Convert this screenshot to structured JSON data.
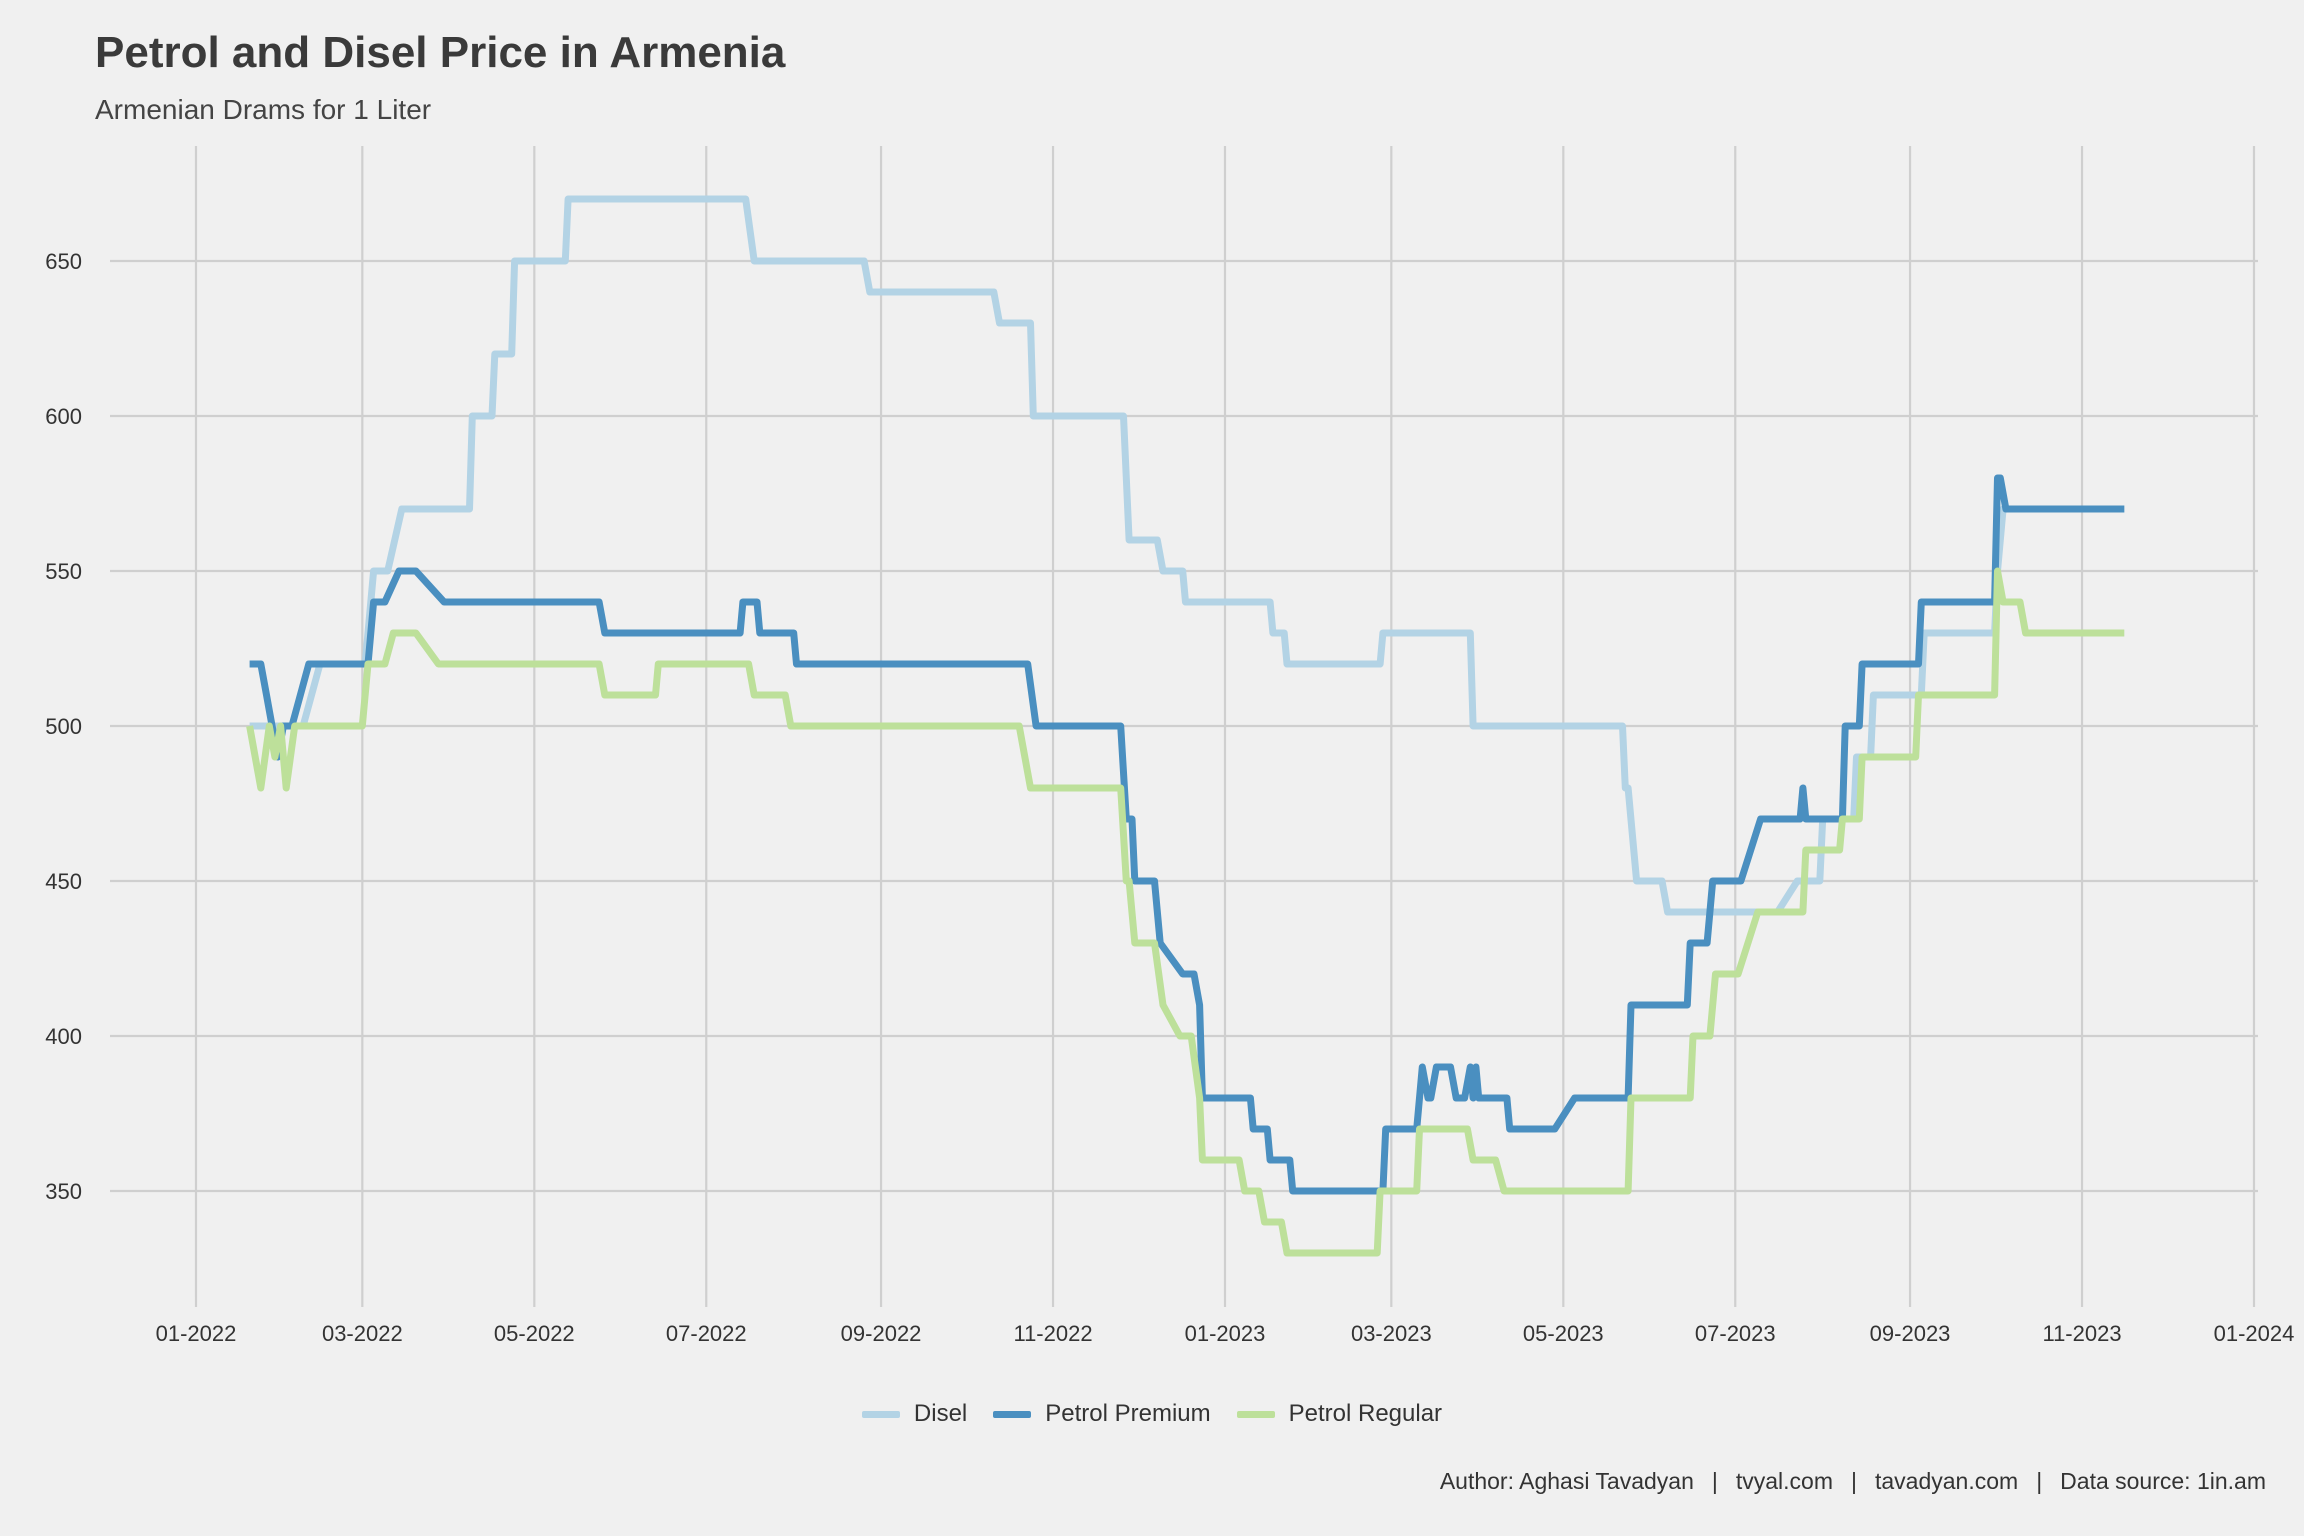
{
  "chart_data": {
    "type": "line",
    "title": "Petrol and Disel Price in Armenia",
    "subtitle": "Armenian Drams for 1 Liter",
    "xlabel": "",
    "ylabel": "",
    "x_ticks": [
      "01-2022",
      "03-2022",
      "05-2022",
      "07-2022",
      "09-2022",
      "11-2022",
      "01-2023",
      "03-2023",
      "05-2023",
      "07-2023",
      "09-2023",
      "11-2023",
      "01-2024"
    ],
    "y_ticks": [
      350,
      400,
      450,
      500,
      550,
      600,
      650
    ],
    "ylim": [
      315,
      685
    ],
    "xlim": [
      "2021-12-14",
      "2024-01-01"
    ],
    "grid": true,
    "legend_position": "bottom",
    "series": [
      {
        "name": "Disel",
        "color": "#b3d3e5",
        "points": [
          [
            "2022-01-20",
            500
          ],
          [
            "2022-02-08",
            500
          ],
          [
            "2022-02-14",
            520
          ],
          [
            "2022-03-02",
            520
          ],
          [
            "2022-03-05",
            550
          ],
          [
            "2022-03-10",
            550
          ],
          [
            "2022-03-15",
            570
          ],
          [
            "2022-04-08",
            570
          ],
          [
            "2022-04-09",
            600
          ],
          [
            "2022-04-16",
            600
          ],
          [
            "2022-04-17",
            620
          ],
          [
            "2022-04-23",
            620
          ],
          [
            "2022-04-24",
            650
          ],
          [
            "2022-05-12",
            650
          ],
          [
            "2022-05-13",
            670
          ],
          [
            "2022-07-15",
            670
          ],
          [
            "2022-07-18",
            650
          ],
          [
            "2022-08-26",
            650
          ],
          [
            "2022-08-28",
            640
          ],
          [
            "2022-10-11",
            640
          ],
          [
            "2022-10-13",
            630
          ],
          [
            "2022-10-24",
            630
          ],
          [
            "2022-10-25",
            600
          ],
          [
            "2022-11-26",
            600
          ],
          [
            "2022-11-28",
            560
          ],
          [
            "2022-12-08",
            560
          ],
          [
            "2022-12-10",
            550
          ],
          [
            "2022-12-17",
            550
          ],
          [
            "2022-12-18",
            540
          ],
          [
            "2023-01-17",
            540
          ],
          [
            "2023-01-18",
            530
          ],
          [
            "2023-01-22",
            530
          ],
          [
            "2023-01-23",
            520
          ],
          [
            "2023-02-25",
            520
          ],
          [
            "2023-02-26",
            530
          ],
          [
            "2023-03-29",
            530
          ],
          [
            "2023-03-30",
            500
          ],
          [
            "2023-05-22",
            500
          ],
          [
            "2023-05-23",
            480
          ],
          [
            "2023-05-24",
            480
          ],
          [
            "2023-05-27",
            450
          ],
          [
            "2023-06-05",
            450
          ],
          [
            "2023-06-07",
            440
          ],
          [
            "2023-07-16",
            440
          ],
          [
            "2023-07-23",
            450
          ],
          [
            "2023-07-31",
            450
          ],
          [
            "2023-08-01",
            470
          ],
          [
            "2023-08-12",
            470
          ],
          [
            "2023-08-13",
            490
          ],
          [
            "2023-08-18",
            490
          ],
          [
            "2023-08-19",
            510
          ],
          [
            "2023-09-05",
            510
          ],
          [
            "2023-09-06",
            530
          ],
          [
            "2023-10-01",
            530
          ],
          [
            "2023-10-02",
            550
          ],
          [
            "2023-10-04",
            570
          ],
          [
            "2023-11-16",
            570
          ]
        ]
      },
      {
        "name": "Petrol Premium",
        "color": "#4a8fc0",
        "points": [
          [
            "2022-01-20",
            520
          ],
          [
            "2022-01-24",
            520
          ],
          [
            "2022-01-26",
            510
          ],
          [
            "2022-01-28",
            500
          ],
          [
            "2022-01-30",
            490
          ],
          [
            "2022-02-01",
            500
          ],
          [
            "2022-02-04",
            500
          ],
          [
            "2022-02-10",
            520
          ],
          [
            "2022-03-03",
            520
          ],
          [
            "2022-03-05",
            540
          ],
          [
            "2022-03-09",
            540
          ],
          [
            "2022-03-14",
            550
          ],
          [
            "2022-03-20",
            550
          ],
          [
            "2022-03-30",
            540
          ],
          [
            "2022-05-24",
            540
          ],
          [
            "2022-05-26",
            530
          ],
          [
            "2022-07-13",
            530
          ],
          [
            "2022-07-14",
            540
          ],
          [
            "2022-07-19",
            540
          ],
          [
            "2022-07-20",
            530
          ],
          [
            "2022-08-01",
            530
          ],
          [
            "2022-08-02",
            520
          ],
          [
            "2022-10-23",
            520
          ],
          [
            "2022-10-26",
            500
          ],
          [
            "2022-11-25",
            500
          ],
          [
            "2022-11-27",
            470
          ],
          [
            "2022-11-29",
            470
          ],
          [
            "2022-11-30",
            450
          ],
          [
            "2022-12-07",
            450
          ],
          [
            "2022-12-09",
            430
          ],
          [
            "2022-12-17",
            420
          ],
          [
            "2022-12-21",
            420
          ],
          [
            "2022-12-23",
            410
          ],
          [
            "2022-12-24",
            380
          ],
          [
            "2023-01-10",
            380
          ],
          [
            "2023-01-11",
            370
          ],
          [
            "2023-01-16",
            370
          ],
          [
            "2023-01-17",
            360
          ],
          [
            "2023-01-24",
            360
          ],
          [
            "2023-01-25",
            350
          ],
          [
            "2023-02-26",
            350
          ],
          [
            "2023-02-27",
            370
          ],
          [
            "2023-03-10",
            370
          ],
          [
            "2023-03-12",
            390
          ],
          [
            "2023-03-14",
            380
          ],
          [
            "2023-03-15",
            380
          ],
          [
            "2023-03-17",
            390
          ],
          [
            "2023-03-22",
            390
          ],
          [
            "2023-03-24",
            380
          ],
          [
            "2023-03-27",
            380
          ],
          [
            "2023-03-29",
            390
          ],
          [
            "2023-03-30",
            380
          ],
          [
            "2023-03-31",
            390
          ],
          [
            "2023-04-01",
            380
          ],
          [
            "2023-04-11",
            380
          ],
          [
            "2023-04-12",
            370
          ],
          [
            "2023-04-28",
            370
          ],
          [
            "2023-05-05",
            380
          ],
          [
            "2023-05-24",
            380
          ],
          [
            "2023-05-25",
            410
          ],
          [
            "2023-06-14",
            410
          ],
          [
            "2023-06-15",
            430
          ],
          [
            "2023-06-21",
            430
          ],
          [
            "2023-06-23",
            450
          ],
          [
            "2023-07-03",
            450
          ],
          [
            "2023-07-10",
            470
          ],
          [
            "2023-07-24",
            470
          ],
          [
            "2023-07-25",
            480
          ],
          [
            "2023-07-26",
            470
          ],
          [
            "2023-08-08",
            470
          ],
          [
            "2023-08-09",
            500
          ],
          [
            "2023-08-14",
            500
          ],
          [
            "2023-08-15",
            520
          ],
          [
            "2023-09-04",
            520
          ],
          [
            "2023-09-05",
            540
          ],
          [
            "2023-10-01",
            540
          ],
          [
            "2023-10-02",
            580
          ],
          [
            "2023-10-03",
            580
          ],
          [
            "2023-10-05",
            570
          ],
          [
            "2023-11-16",
            570
          ]
        ]
      },
      {
        "name": "Petrol Regular",
        "color": "#bde09a",
        "points": [
          [
            "2022-01-20",
            500
          ],
          [
            "2022-01-24",
            480
          ],
          [
            "2022-01-27",
            500
          ],
          [
            "2022-01-29",
            490
          ],
          [
            "2022-01-31",
            500
          ],
          [
            "2022-02-02",
            480
          ],
          [
            "2022-02-05",
            500
          ],
          [
            "2022-03-01",
            500
          ],
          [
            "2022-03-03",
            520
          ],
          [
            "2022-03-09",
            520
          ],
          [
            "2022-03-12",
            530
          ],
          [
            "2022-03-20",
            530
          ],
          [
            "2022-03-28",
            520
          ],
          [
            "2022-05-24",
            520
          ],
          [
            "2022-05-26",
            510
          ],
          [
            "2022-06-13",
            510
          ],
          [
            "2022-06-14",
            520
          ],
          [
            "2022-07-16",
            520
          ],
          [
            "2022-07-18",
            510
          ],
          [
            "2022-07-29",
            510
          ],
          [
            "2022-07-31",
            500
          ],
          [
            "2022-10-20",
            500
          ],
          [
            "2022-10-24",
            480
          ],
          [
            "2022-11-25",
            480
          ],
          [
            "2022-11-27",
            450
          ],
          [
            "2022-11-28",
            450
          ],
          [
            "2022-11-30",
            430
          ],
          [
            "2022-12-07",
            430
          ],
          [
            "2022-12-10",
            410
          ],
          [
            "2022-12-16",
            400
          ],
          [
            "2022-12-20",
            400
          ],
          [
            "2022-12-23",
            380
          ],
          [
            "2022-12-24",
            360
          ],
          [
            "2023-01-06",
            360
          ],
          [
            "2023-01-08",
            350
          ],
          [
            "2023-01-13",
            350
          ],
          [
            "2023-01-15",
            340
          ],
          [
            "2023-01-21",
            340
          ],
          [
            "2023-01-23",
            330
          ],
          [
            "2023-02-24",
            330
          ],
          [
            "2023-02-25",
            350
          ],
          [
            "2023-03-10",
            350
          ],
          [
            "2023-03-11",
            370
          ],
          [
            "2023-03-28",
            370
          ],
          [
            "2023-03-30",
            360
          ],
          [
            "2023-04-07",
            360
          ],
          [
            "2023-04-10",
            350
          ],
          [
            "2023-05-24",
            350
          ],
          [
            "2023-05-25",
            380
          ],
          [
            "2023-06-15",
            380
          ],
          [
            "2023-06-16",
            400
          ],
          [
            "2023-06-22",
            400
          ],
          [
            "2023-06-24",
            420
          ],
          [
            "2023-07-02",
            420
          ],
          [
            "2023-07-09",
            440
          ],
          [
            "2023-07-25",
            440
          ],
          [
            "2023-07-26",
            460
          ],
          [
            "2023-08-07",
            460
          ],
          [
            "2023-08-08",
            470
          ],
          [
            "2023-08-14",
            470
          ],
          [
            "2023-08-15",
            490
          ],
          [
            "2023-09-03",
            490
          ],
          [
            "2023-09-04",
            510
          ],
          [
            "2023-09-29",
            510
          ],
          [
            "2023-10-01",
            510
          ],
          [
            "2023-10-02",
            550
          ],
          [
            "2023-10-04",
            540
          ],
          [
            "2023-10-10",
            540
          ],
          [
            "2023-10-12",
            530
          ],
          [
            "2023-11-16",
            530
          ]
        ]
      }
    ]
  },
  "caption": {
    "parts": [
      "Author: Aghasi Tavadyan",
      "tvyal.com",
      "tavadyan.com",
      "Data source: 1in.am"
    ],
    "separator": "|"
  }
}
